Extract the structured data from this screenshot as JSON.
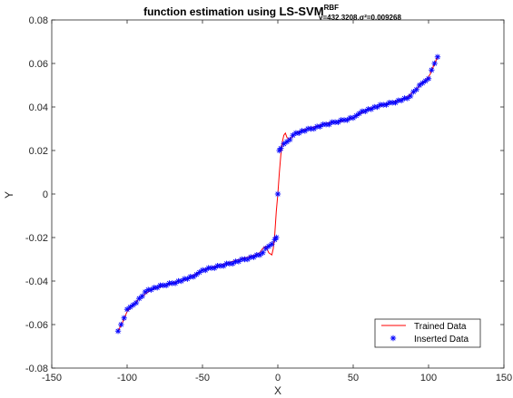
{
  "chart_data": {
    "type": "line",
    "title": {
      "prefix": "function estimation using  ",
      "main": "LS-SVM",
      "superscript": "RBF",
      "subscript": "γ=432.3208,σ²=0.009268"
    },
    "xlabel": "X",
    "ylabel": "Y",
    "xlim": [
      -150,
      150
    ],
    "ylim": [
      -0.08,
      0.08
    ],
    "xticks": [
      -150,
      -100,
      -50,
      0,
      50,
      100,
      150
    ],
    "xtick_labels": [
      "-150",
      "-100",
      "-50",
      "0",
      "50",
      "100",
      "150"
    ],
    "yticks": [
      -0.08,
      -0.06,
      -0.04,
      -0.02,
      0,
      0.02,
      0.04,
      0.06,
      0.08
    ],
    "ytick_labels": [
      "-0.08",
      "-0.06",
      "-0.04",
      "-0.02",
      "0",
      "0.02",
      "0.04",
      "0.06",
      "0.08"
    ],
    "grid": false,
    "legend_position": "bottom-right",
    "series": [
      {
        "name": "Trained Data",
        "style": "line",
        "color": "#ff0000",
        "x": [
          -106,
          -103,
          -100,
          -96,
          -92,
          -88,
          -84,
          -80,
          -75,
          -70,
          -65,
          -60,
          -55,
          -50,
          -45,
          -40,
          -35,
          -30,
          -25,
          -20,
          -15,
          -12,
          -10,
          -8,
          -6,
          -4,
          -3,
          -2,
          -1,
          0,
          1,
          2,
          3,
          4,
          5,
          6,
          8,
          10,
          12,
          15,
          20,
          25,
          30,
          35,
          40,
          45,
          50,
          55,
          60,
          65,
          70,
          75,
          80,
          85,
          88,
          92,
          95,
          98,
          101,
          104,
          106
        ],
        "y": [
          -0.063,
          -0.059,
          -0.054,
          -0.051,
          -0.048,
          -0.046,
          -0.044,
          -0.043,
          -0.042,
          -0.041,
          -0.04,
          -0.039,
          -0.037,
          -0.035,
          -0.034,
          -0.033,
          -0.032,
          -0.031,
          -0.03,
          -0.029,
          -0.028,
          -0.027,
          -0.025,
          -0.024,
          -0.027,
          -0.028,
          -0.025,
          -0.018,
          -0.008,
          0.0,
          0.01,
          0.018,
          0.024,
          0.027,
          0.028,
          0.026,
          0.025,
          0.027,
          0.028,
          0.029,
          0.03,
          0.031,
          0.032,
          0.033,
          0.033,
          0.034,
          0.035,
          0.037,
          0.039,
          0.04,
          0.041,
          0.042,
          0.043,
          0.044,
          0.046,
          0.048,
          0.051,
          0.052,
          0.055,
          0.06,
          0.063
        ]
      },
      {
        "name": "Inserted Data",
        "style": "marker",
        "marker": "*",
        "color": "#0000ff",
        "x": [
          -106,
          -104,
          -102,
          -100,
          -98,
          -96,
          -94,
          -92,
          -90,
          -88,
          -86,
          -84,
          -82,
          -80,
          -78,
          -76,
          -74,
          -72,
          -70,
          -68,
          -66,
          -64,
          -62,
          -60,
          -58,
          -56,
          -54,
          -52,
          -50,
          -48,
          -46,
          -44,
          -42,
          -40,
          -38,
          -36,
          -34,
          -32,
          -30,
          -28,
          -26,
          -24,
          -22,
          -20,
          -18,
          -16,
          -14,
          -12,
          -10,
          -8,
          -6,
          -4,
          -2,
          -1,
          0,
          1,
          2,
          4,
          6,
          8,
          10,
          12,
          14,
          16,
          18,
          20,
          22,
          24,
          26,
          28,
          30,
          32,
          34,
          36,
          38,
          40,
          42,
          44,
          46,
          48,
          50,
          52,
          54,
          56,
          58,
          60,
          62,
          64,
          66,
          68,
          70,
          72,
          74,
          76,
          78,
          80,
          82,
          84,
          86,
          88,
          90,
          92,
          94,
          96,
          98,
          100,
          102,
          104,
          106
        ],
        "y": [
          -0.063,
          -0.06,
          -0.057,
          -0.053,
          -0.052,
          -0.051,
          -0.05,
          -0.048,
          -0.047,
          -0.045,
          -0.044,
          -0.044,
          -0.043,
          -0.043,
          -0.042,
          -0.042,
          -0.042,
          -0.041,
          -0.041,
          -0.041,
          -0.04,
          -0.04,
          -0.039,
          -0.039,
          -0.038,
          -0.038,
          -0.037,
          -0.036,
          -0.035,
          -0.035,
          -0.034,
          -0.034,
          -0.034,
          -0.033,
          -0.033,
          -0.033,
          -0.032,
          -0.032,
          -0.032,
          -0.031,
          -0.031,
          -0.03,
          -0.03,
          -0.03,
          -0.029,
          -0.029,
          -0.028,
          -0.028,
          -0.027,
          -0.025,
          -0.024,
          -0.023,
          -0.021,
          -0.02,
          0.0,
          0.02,
          0.021,
          0.023,
          0.024,
          0.025,
          0.027,
          0.028,
          0.028,
          0.029,
          0.029,
          0.03,
          0.03,
          0.03,
          0.031,
          0.031,
          0.032,
          0.032,
          0.032,
          0.033,
          0.033,
          0.033,
          0.034,
          0.034,
          0.034,
          0.035,
          0.035,
          0.036,
          0.037,
          0.038,
          0.038,
          0.039,
          0.039,
          0.04,
          0.04,
          0.041,
          0.041,
          0.041,
          0.042,
          0.042,
          0.042,
          0.043,
          0.043,
          0.044,
          0.044,
          0.045,
          0.047,
          0.048,
          0.05,
          0.051,
          0.052,
          0.053,
          0.057,
          0.06,
          0.063
        ]
      }
    ]
  }
}
